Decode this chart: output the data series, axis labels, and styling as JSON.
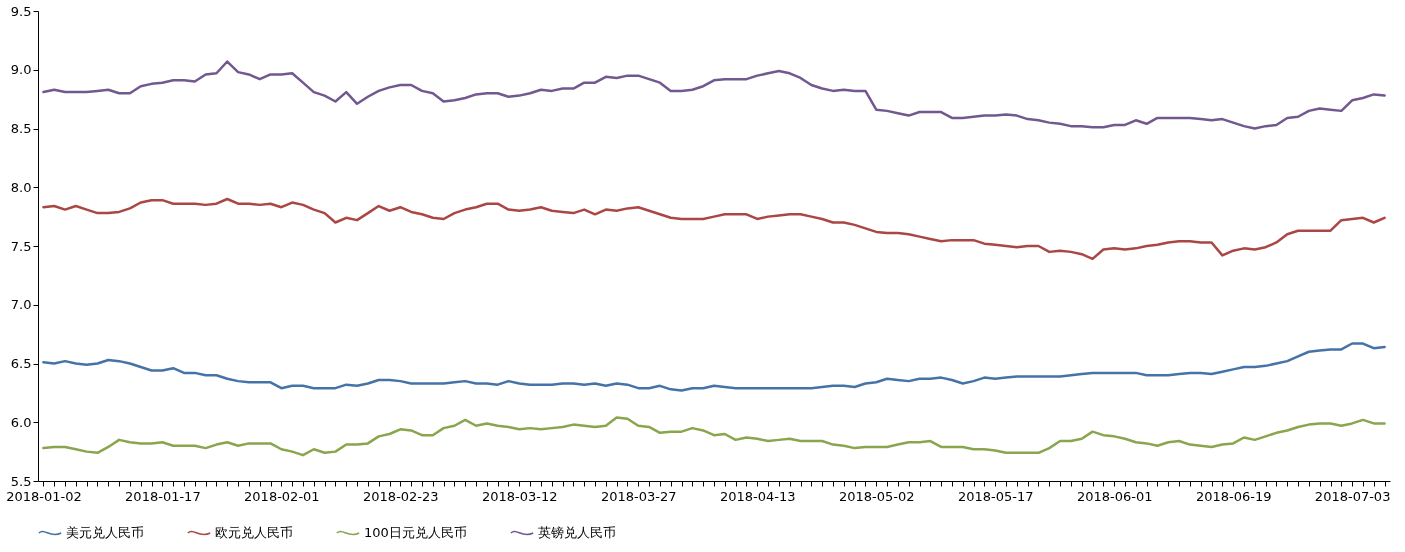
{
  "chart_data": {
    "type": "line",
    "categories": [
      "2018-01-02",
      null,
      null,
      null,
      null,
      null,
      null,
      null,
      null,
      null,
      null,
      "2018-01-17",
      null,
      null,
      null,
      null,
      null,
      null,
      null,
      null,
      null,
      null,
      "2018-02-01",
      null,
      null,
      null,
      null,
      null,
      null,
      null,
      null,
      null,
      null,
      "2018-02-23",
      null,
      null,
      null,
      null,
      null,
      null,
      null,
      null,
      null,
      null,
      "2018-03-12",
      null,
      null,
      null,
      null,
      null,
      null,
      null,
      null,
      null,
      null,
      "2018-03-27",
      null,
      null,
      null,
      null,
      null,
      null,
      null,
      null,
      null,
      null,
      "2018-04-13",
      null,
      null,
      null,
      null,
      null,
      null,
      null,
      null,
      null,
      null,
      "2018-05-02",
      null,
      null,
      null,
      null,
      null,
      null,
      null,
      null,
      null,
      null,
      "2018-05-17",
      null,
      null,
      null,
      null,
      null,
      null,
      null,
      null,
      null,
      null,
      "2018-06-01",
      null,
      null,
      null,
      null,
      null,
      null,
      null,
      null,
      null,
      null,
      "2018-06-19",
      null,
      null,
      null,
      null,
      null,
      null,
      null,
      null,
      null,
      null,
      "2018-07-03",
      null,
      null,
      null
    ],
    "series": [
      {
        "name": "美元兑人民币",
        "color": "#4572a7",
        "values": [
          6.51,
          6.5,
          6.52,
          6.5,
          6.49,
          6.5,
          6.53,
          6.52,
          6.5,
          6.47,
          6.44,
          6.44,
          6.46,
          6.42,
          6.42,
          6.4,
          6.4,
          6.37,
          6.35,
          6.34,
          6.34,
          6.34,
          6.29,
          6.31,
          6.31,
          6.29,
          6.29,
          6.29,
          6.32,
          6.31,
          6.33,
          6.36,
          6.36,
          6.35,
          6.33,
          6.33,
          6.33,
          6.33,
          6.34,
          6.35,
          6.33,
          6.33,
          6.32,
          6.35,
          6.33,
          6.32,
          6.32,
          6.32,
          6.33,
          6.33,
          6.32,
          6.33,
          6.31,
          6.33,
          6.32,
          6.29,
          6.29,
          6.31,
          6.28,
          6.27,
          6.29,
          6.29,
          6.31,
          6.3,
          6.29,
          6.29,
          6.29,
          6.29,
          6.29,
          6.29,
          6.29,
          6.29,
          6.3,
          6.31,
          6.31,
          6.3,
          6.33,
          6.34,
          6.37,
          6.36,
          6.35,
          6.37,
          6.37,
          6.38,
          6.36,
          6.33,
          6.35,
          6.38,
          6.37,
          6.38,
          6.39,
          6.39,
          6.39,
          6.39,
          6.39,
          6.4,
          6.41,
          6.42,
          6.42,
          6.42,
          6.42,
          6.42,
          6.4,
          6.4,
          6.4,
          6.41,
          6.42,
          6.42,
          6.41,
          6.43,
          6.45,
          6.47,
          6.47,
          6.48,
          6.5,
          6.52,
          6.56,
          6.6,
          6.61,
          6.62,
          6.62,
          6.67,
          6.67,
          6.63,
          6.64
        ]
      },
      {
        "name": "欧元兑人民币",
        "color": "#aa4643",
        "values": [
          7.83,
          7.84,
          7.81,
          7.84,
          7.81,
          7.78,
          7.78,
          7.79,
          7.82,
          7.87,
          7.89,
          7.89,
          7.86,
          7.86,
          7.86,
          7.85,
          7.86,
          7.9,
          7.86,
          7.86,
          7.85,
          7.86,
          7.83,
          7.87,
          7.85,
          7.81,
          7.78,
          7.7,
          7.74,
          7.72,
          7.78,
          7.84,
          7.8,
          7.83,
          7.79,
          7.77,
          7.74,
          7.73,
          7.78,
          7.81,
          7.83,
          7.86,
          7.86,
          7.81,
          7.8,
          7.81,
          7.83,
          7.8,
          7.79,
          7.78,
          7.81,
          7.77,
          7.81,
          7.8,
          7.82,
          7.83,
          7.8,
          7.77,
          7.74,
          7.73,
          7.73,
          7.73,
          7.75,
          7.77,
          7.77,
          7.77,
          7.73,
          7.75,
          7.76,
          7.77,
          7.77,
          7.75,
          7.73,
          7.7,
          7.7,
          7.68,
          7.65,
          7.62,
          7.61,
          7.61,
          7.6,
          7.58,
          7.56,
          7.54,
          7.55,
          7.55,
          7.55,
          7.52,
          7.51,
          7.5,
          7.49,
          7.5,
          7.5,
          7.45,
          7.46,
          7.45,
          7.43,
          7.39,
          7.47,
          7.48,
          7.47,
          7.48,
          7.5,
          7.51,
          7.53,
          7.54,
          7.54,
          7.53,
          7.53,
          7.42,
          7.46,
          7.48,
          7.47,
          7.49,
          7.53,
          7.6,
          7.63,
          7.63,
          7.63,
          7.63,
          7.72,
          7.73,
          7.74,
          7.7,
          7.74
        ]
      },
      {
        "name": "100日元兑人民币",
        "color": "#89a54e",
        "values": [
          5.78,
          5.79,
          5.79,
          5.77,
          5.75,
          5.74,
          5.79,
          5.85,
          5.83,
          5.82,
          5.82,
          5.83,
          5.8,
          5.8,
          5.8,
          5.78,
          5.81,
          5.83,
          5.8,
          5.82,
          5.82,
          5.82,
          5.77,
          5.75,
          5.72,
          5.77,
          5.74,
          5.75,
          5.81,
          5.81,
          5.82,
          5.88,
          5.9,
          5.94,
          5.93,
          5.89,
          5.89,
          5.95,
          5.97,
          6.02,
          5.97,
          5.99,
          5.97,
          5.96,
          5.94,
          5.95,
          5.94,
          5.95,
          5.96,
          5.98,
          5.97,
          5.96,
          5.97,
          6.04,
          6.03,
          5.97,
          5.96,
          5.91,
          5.92,
          5.92,
          5.95,
          5.93,
          5.89,
          5.9,
          5.85,
          5.87,
          5.86,
          5.84,
          5.85,
          5.86,
          5.84,
          5.84,
          5.84,
          5.81,
          5.8,
          5.78,
          5.79,
          5.79,
          5.79,
          5.81,
          5.83,
          5.83,
          5.84,
          5.79,
          5.79,
          5.79,
          5.77,
          5.77,
          5.76,
          5.74,
          5.74,
          5.74,
          5.74,
          5.78,
          5.84,
          5.84,
          5.86,
          5.92,
          5.89,
          5.88,
          5.86,
          5.83,
          5.82,
          5.8,
          5.83,
          5.84,
          5.81,
          5.8,
          5.79,
          5.81,
          5.82,
          5.87,
          5.85,
          5.88,
          5.91,
          5.93,
          5.96,
          5.98,
          5.99,
          5.99,
          5.97,
          5.99,
          6.02,
          5.99,
          5.99
        ]
      },
      {
        "name": "英镑兑人民币",
        "color": "#71588f",
        "values": [
          8.81,
          8.83,
          8.81,
          8.81,
          8.81,
          8.82,
          8.83,
          8.8,
          8.8,
          8.86,
          8.88,
          8.89,
          8.91,
          8.91,
          8.9,
          8.96,
          8.97,
          9.07,
          8.98,
          8.96,
          8.92,
          8.96,
          8.96,
          8.97,
          8.89,
          8.81,
          8.78,
          8.73,
          8.81,
          8.71,
          8.77,
          8.82,
          8.85,
          8.87,
          8.87,
          8.82,
          8.8,
          8.73,
          8.74,
          8.76,
          8.79,
          8.8,
          8.8,
          8.77,
          8.78,
          8.8,
          8.83,
          8.82,
          8.84,
          8.84,
          8.89,
          8.89,
          8.94,
          8.93,
          8.95,
          8.95,
          8.92,
          8.89,
          8.82,
          8.82,
          8.83,
          8.86,
          8.91,
          8.92,
          8.92,
          8.92,
          8.95,
          8.97,
          8.99,
          8.97,
          8.93,
          8.87,
          8.84,
          8.82,
          8.83,
          8.82,
          8.82,
          8.66,
          8.65,
          8.63,
          8.61,
          8.64,
          8.64,
          8.64,
          8.59,
          8.59,
          8.6,
          8.61,
          8.61,
          8.62,
          8.61,
          8.58,
          8.57,
          8.55,
          8.54,
          8.52,
          8.52,
          8.51,
          8.51,
          8.53,
          8.53,
          8.57,
          8.54,
          8.59,
          8.59,
          8.59,
          8.59,
          8.58,
          8.57,
          8.58,
          8.55,
          8.52,
          8.5,
          8.52,
          8.53,
          8.59,
          8.6,
          8.65,
          8.67,
          8.66,
          8.65,
          8.74,
          8.76,
          8.79,
          8.78
        ]
      }
    ],
    "ylim": [
      5.5,
      9.5
    ],
    "yticks": [
      5.5,
      {
        "value": 6,
        "label": "6.0"
      },
      6.5,
      {
        "value": 7,
        "label": "7.0"
      },
      7.5,
      {
        "value": 8,
        "label": "8.0"
      },
      8.5,
      {
        "value": 9,
        "label": "9.0"
      },
      9.5
    ],
    "grid": false,
    "legend": "bottom"
  }
}
